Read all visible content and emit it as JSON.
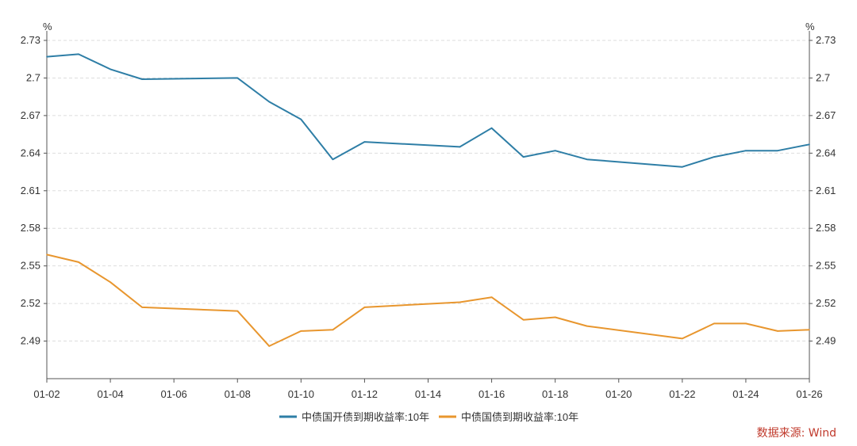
{
  "chart_data": {
    "type": "line",
    "title": "",
    "unit_left": "%",
    "unit_right": "%",
    "x_tick_labels": [
      "01-02",
      "01-04",
      "01-06",
      "01-08",
      "01-10",
      "01-12",
      "01-14",
      "01-16",
      "01-18",
      "01-20",
      "01-22",
      "01-24",
      "01-26"
    ],
    "x_range": [
      2,
      26
    ],
    "ylim": [
      2.46,
      2.73
    ],
    "y_ticks": [
      2.49,
      2.52,
      2.55,
      2.58,
      2.61,
      2.64,
      2.67,
      2.7,
      2.73
    ],
    "y_tick_labels": [
      "2.49",
      "2.52",
      "2.55",
      "2.58",
      "2.61",
      "2.64",
      "2.67",
      "2.7",
      "2.73"
    ],
    "series": [
      {
        "name": "中债国开债到期收益率:10年",
        "color": "#2e7ea6",
        "x": [
          2,
          3,
          4,
          5,
          8,
          9,
          10,
          11,
          12,
          15,
          16,
          17,
          18,
          19,
          22,
          23,
          24,
          25,
          26
        ],
        "values": [
          2.717,
          2.719,
          2.707,
          2.699,
          2.7,
          2.681,
          2.667,
          2.635,
          2.649,
          2.645,
          2.66,
          2.637,
          2.642,
          2.635,
          2.629,
          2.637,
          2.642,
          2.642,
          2.647
        ]
      },
      {
        "name": "中债国债到期收益率:10年",
        "color": "#e8962e",
        "x": [
          2,
          3,
          4,
          5,
          8,
          9,
          10,
          11,
          12,
          15,
          16,
          17,
          18,
          19,
          22,
          23,
          24,
          25,
          26
        ],
        "values": [
          2.559,
          2.553,
          2.537,
          2.517,
          2.514,
          2.486,
          2.498,
          2.499,
          2.517,
          2.521,
          2.525,
          2.507,
          2.509,
          2.502,
          2.492,
          2.504,
          2.504,
          2.498,
          2.499
        ]
      }
    ]
  },
  "source_note": "数据来源: Wind"
}
